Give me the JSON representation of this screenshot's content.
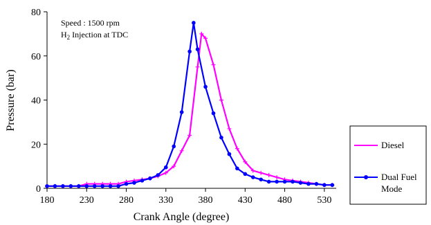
{
  "chart_data": {
    "type": "line",
    "xlabel": "Crank Angle (degree)",
    "ylabel": "Pressure (bar)",
    "xlim": [
      180,
      545
    ],
    "ylim": [
      0,
      80
    ],
    "x_ticks": [
      180,
      230,
      280,
      330,
      380,
      430,
      480,
      530
    ],
    "y_ticks": [
      0,
      20,
      40,
      60,
      80
    ],
    "grid": false,
    "legend_position": "right",
    "annotations": {
      "line1": "Speed : 1500 rpm",
      "line2_main": "H",
      "line2_sub": "2",
      "line2_rest": " Injection at TDC"
    },
    "series": [
      {
        "name": "Diesel",
        "color": "#ff00ff",
        "marker": "plus",
        "x": [
          180,
          190,
          200,
          210,
          220,
          230,
          240,
          250,
          260,
          270,
          280,
          290,
          300,
          310,
          320,
          330,
          340,
          350,
          360,
          370,
          375,
          380,
          390,
          400,
          410,
          420,
          430,
          440,
          450,
          460,
          470,
          480,
          490,
          500,
          510,
          520,
          530,
          540
        ],
        "y": [
          1,
          1,
          1,
          1,
          1,
          2,
          2,
          2,
          2,
          2,
          3,
          3.5,
          4,
          4.5,
          5.5,
          7,
          10,
          17,
          24,
          55,
          70,
          68,
          56,
          40,
          27,
          18,
          12,
          8,
          7,
          6,
          5,
          4,
          3.5,
          3,
          2.5,
          2,
          1.5,
          1.5
        ]
      },
      {
        "name": "Dual Fuel Mode",
        "color": "#0000ff",
        "marker": "circle",
        "x": [
          180,
          190,
          200,
          210,
          220,
          230,
          240,
          250,
          260,
          270,
          280,
          290,
          300,
          310,
          320,
          330,
          340,
          350,
          360,
          365,
          370,
          380,
          390,
          400,
          410,
          420,
          430,
          440,
          450,
          460,
          470,
          480,
          490,
          500,
          510,
          520,
          530,
          540
        ],
        "y": [
          1,
          1,
          1,
          1,
          1,
          1,
          1,
          1,
          1,
          1,
          2,
          2.5,
          3.5,
          4.5,
          6,
          9.5,
          19,
          34.5,
          62,
          75,
          63,
          46,
          34,
          23,
          15.5,
          9,
          6.5,
          5,
          4,
          3,
          3,
          3,
          3,
          2.5,
          2,
          2,
          1.5,
          1.5
        ]
      }
    ]
  }
}
